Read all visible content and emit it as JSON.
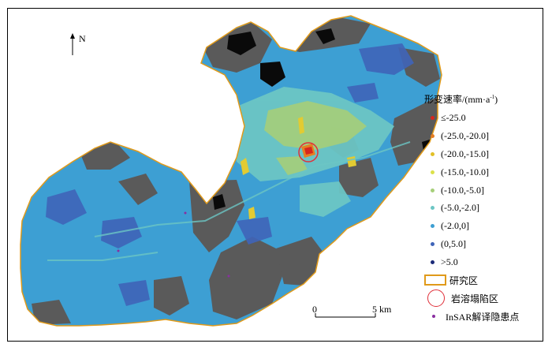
{
  "map": {
    "north_label": "N",
    "scale_bar": {
      "start_label": "0",
      "end_label": "5 km"
    },
    "colors": {
      "terrain": "#5a5a5a",
      "water": "#0a0a0a",
      "base_fill": "#3d9fd3",
      "deep_blue": "#3f64b8",
      "light_cyan": "#6cc6c4",
      "green": "#a6cf79",
      "yellow": "#e2cb32",
      "orange": "#e67e22",
      "red": "#d7261d",
      "boundary": "#e09a1a",
      "collapse_circle": "#e0303a",
      "insar_point": "#8a2ea0"
    }
  },
  "legend": {
    "title": "形变速率/(mm·a",
    "title_sup": "-1",
    "title_close": ")",
    "classes": [
      {
        "label": "≤-25.0",
        "color": "#d7261d"
      },
      {
        "label": "(-25.0,-20.0]",
        "color": "#e67e22"
      },
      {
        "label": "(-20.0,-15.0]",
        "color": "#e2c027"
      },
      {
        "label": "(-15.0,-10.0]",
        "color": "#dce14a"
      },
      {
        "label": "(-10.0,-5.0]",
        "color": "#a6cf79"
      },
      {
        "label": "(-5.0,-2.0]",
        "color": "#6cc6c4"
      },
      {
        "label": "(-2.0,0]",
        "color": "#3d9fd3"
      },
      {
        "label": "(0,5.0]",
        "color": "#3f64b8"
      },
      {
        "label": ">5.0",
        "color": "#1b2a78"
      }
    ],
    "study_area_label": "研究区",
    "collapse_label": "岩溶塌陷区",
    "insar_label": "InSAR解译隐患点"
  }
}
